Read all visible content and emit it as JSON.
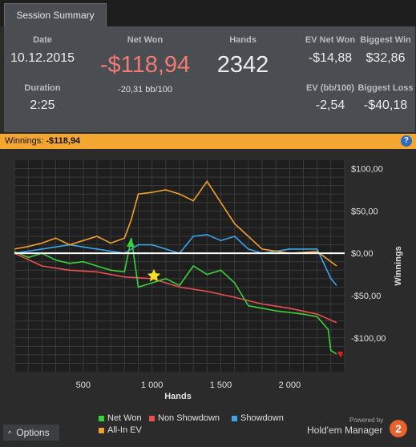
{
  "tab": {
    "label": "Session Summary"
  },
  "summary": {
    "date_label": "Date",
    "date": "10.12.2015",
    "duration_label": "Duration",
    "duration": "2:25",
    "net_won_label": "Net Won",
    "net_won": "-$118,94",
    "bb100": "-20,31 bb/100",
    "hands_label": "Hands",
    "hands": "2342",
    "ev_net_won_label": "EV Net Won",
    "ev_net_won": "-$14,88",
    "biggest_win_label": "Biggest Win",
    "biggest_win": "$32,86",
    "ev_bb100_label": "EV (bb/100)",
    "ev_bb100": "-2,54",
    "biggest_loss_label": "Biggest Loss",
    "biggest_loss": "-$40,18"
  },
  "winnings_bar": {
    "label": "Winnings:",
    "value": "-$118,94",
    "help": "?"
  },
  "chart_data": {
    "type": "line",
    "xlabel": "Hands",
    "ylabel": "Winnings",
    "xlim": [
      0,
      2400
    ],
    "ylim": [
      -140,
      110
    ],
    "x_ticks": [
      500,
      1000,
      1500,
      2000
    ],
    "x_tick_labels": [
      "500",
      "1 000",
      "1 500",
      "2 000"
    ],
    "y_ticks": [
      100,
      50,
      0,
      -50,
      -100
    ],
    "y_tick_labels": [
      "$100,00",
      "$50,00",
      "$0,00",
      "-$50,00",
      "-$100,00"
    ],
    "grid": true,
    "zero_line": true,
    "legend_position": "bottom",
    "series": [
      {
        "name": "Net Won",
        "color": "#3ad13a",
        "x": [
          0,
          100,
          200,
          300,
          400,
          500,
          600,
          700,
          800,
          850,
          900,
          1000,
          1100,
          1200,
          1300,
          1400,
          1500,
          1600,
          1700,
          1800,
          1900,
          2000,
          2100,
          2200,
          2280,
          2300,
          2342
        ],
        "y": [
          2,
          -5,
          0,
          -8,
          -12,
          -10,
          -15,
          -20,
          -22,
          18,
          -40,
          -35,
          -30,
          -38,
          -15,
          -25,
          -20,
          -35,
          -62,
          -65,
          -68,
          -70,
          -72,
          -75,
          -90,
          -115,
          -119
        ]
      },
      {
        "name": "Non Showdown",
        "color": "#e85050",
        "x": [
          0,
          200,
          400,
          600,
          800,
          1000,
          1200,
          1400,
          1600,
          1800,
          2000,
          2200,
          2342
        ],
        "y": [
          0,
          -15,
          -20,
          -22,
          -28,
          -30,
          -40,
          -45,
          -52,
          -60,
          -65,
          -72,
          -82
        ]
      },
      {
        "name": "Showdown",
        "color": "#3ea4e8",
        "x": [
          0,
          200,
          400,
          600,
          800,
          850,
          900,
          1000,
          1100,
          1200,
          1300,
          1400,
          1500,
          1600,
          1700,
          1800,
          2000,
          2200,
          2300,
          2342
        ],
        "y": [
          0,
          5,
          10,
          5,
          0,
          5,
          10,
          10,
          5,
          0,
          20,
          22,
          15,
          20,
          5,
          0,
          5,
          5,
          -30,
          -38
        ]
      },
      {
        "name": "All-In EV",
        "color": "#f0a030",
        "x": [
          0,
          100,
          200,
          300,
          400,
          500,
          600,
          700,
          800,
          850,
          900,
          1000,
          1100,
          1200,
          1300,
          1400,
          1500,
          1600,
          1700,
          1800,
          2000,
          2200,
          2342
        ],
        "y": [
          5,
          8,
          12,
          18,
          10,
          15,
          20,
          12,
          18,
          40,
          70,
          72,
          75,
          70,
          62,
          85,
          60,
          35,
          20,
          5,
          0,
          2,
          -15
        ]
      }
    ]
  },
  "footer": {
    "options_label": "Options",
    "options_icon": "chevron-up-icon",
    "powered_by": "Powered by",
    "brand": "Hold'em Manager",
    "brand_badge": "2"
  }
}
